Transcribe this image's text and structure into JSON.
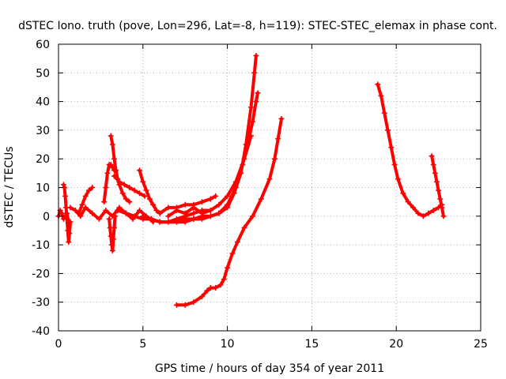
{
  "chart_data": {
    "type": "scatter",
    "title": "dSTEC Iono. truth (pove, Lon=296, Lat=-8, h=119): STEC-STEC_elemax in phase cont.",
    "xlabel": "GPS time / hours of day 354 of year 2011",
    "ylabel": "dSTEC  / TECUs",
    "xlim": [
      0,
      25
    ],
    "ylim": [
      -40,
      60
    ],
    "xticks": [
      0,
      5,
      10,
      15,
      20,
      25
    ],
    "yticks": [
      -40,
      -30,
      -20,
      -10,
      0,
      10,
      20,
      30,
      40,
      50,
      60
    ],
    "grid": true,
    "marker": "+",
    "color": "#ff0000",
    "series": [
      {
        "x": [
          0.0,
          0.1,
          0.2,
          0.3,
          0.4,
          0.5,
          0.6
        ],
        "y": [
          0,
          2,
          1,
          -1,
          0,
          1,
          -2
        ]
      },
      {
        "x": [
          0.3,
          0.35,
          0.4,
          0.45,
          0.5,
          0.55,
          0.6,
          0.65,
          0.7
        ],
        "y": [
          11,
          10,
          7,
          3,
          -1,
          -5,
          -9,
          -6,
          -2
        ]
      },
      {
        "x": [
          0.7,
          1.0,
          1.3,
          1.6,
          2.0,
          2.4,
          2.8,
          3.2,
          3.6,
          4.0,
          4.4,
          4.8,
          5.2,
          5.6
        ],
        "y": [
          3,
          2,
          0,
          3,
          1,
          -1,
          2,
          0,
          3,
          1,
          -1,
          2,
          0,
          -2
        ]
      },
      {
        "x": [
          1.2,
          1.4,
          1.6,
          1.8,
          2.0
        ],
        "y": [
          1,
          4,
          7,
          9,
          10
        ]
      },
      {
        "x": [
          2.7,
          2.8,
          2.9,
          3.0,
          3.1,
          3.2,
          3.3
        ],
        "y": [
          5,
          10,
          15,
          18,
          18,
          17,
          16
        ]
      },
      {
        "x": [
          3.0,
          3.05,
          3.1,
          3.15,
          3.2,
          3.25,
          3.3,
          3.35
        ],
        "y": [
          -1,
          -4,
          -7,
          -10,
          -12,
          -8,
          -4,
          0
        ]
      },
      {
        "x": [
          3.1,
          3.2,
          3.3,
          3.4,
          3.5,
          3.6,
          3.8,
          4.0,
          4.2
        ],
        "y": [
          28,
          25,
          20,
          16,
          13,
          11,
          8,
          6,
          5
        ]
      },
      {
        "x": [
          3.3,
          3.6,
          3.9,
          4.2,
          4.5,
          4.8,
          5.1
        ],
        "y": [
          14,
          12,
          11,
          10,
          9,
          8,
          7
        ]
      },
      {
        "x": [
          4.8,
          5.0,
          5.2,
          5.4,
          5.6,
          5.8,
          6.0
        ],
        "y": [
          16,
          12,
          9,
          6,
          4,
          2,
          1
        ]
      },
      {
        "x": [
          3.5,
          4.0,
          4.5,
          5.0,
          5.5,
          6.0,
          6.5,
          7.0,
          7.5,
          8.0,
          8.5,
          9.0,
          9.5,
          10.0,
          10.4,
          10.8,
          11.1,
          11.4,
          11.6,
          11.7
        ],
        "y": [
          2,
          1,
          0,
          -1,
          -1,
          -2,
          -2,
          -2,
          -2,
          -1,
          -1,
          0,
          1,
          3,
          8,
          15,
          25,
          38,
          50,
          56
        ]
      },
      {
        "x": [
          5.0,
          5.5,
          6.0,
          6.5,
          7.0,
          7.5,
          8.0,
          8.5,
          9.0,
          9.5,
          10.0,
          10.5,
          10.9,
          11.2,
          11.5,
          11.7,
          11.8
        ],
        "y": [
          0,
          -1,
          -2,
          -2,
          -2,
          -1,
          -1,
          0,
          0,
          1,
          4,
          10,
          18,
          25,
          33,
          40,
          43
        ]
      },
      {
        "x": [
          5.5,
          6.0,
          6.5,
          7.0,
          7.5,
          8.0,
          8.5,
          9.0,
          9.5,
          10.0,
          10.5,
          11.0,
          11.4
        ],
        "y": [
          -1,
          -2,
          -2,
          -1,
          0,
          1,
          2,
          2,
          4,
          7,
          12,
          20,
          28
        ]
      },
      {
        "x": [
          6.0,
          6.5,
          7.0,
          7.5,
          8.0,
          8.5,
          9.0,
          9.3
        ],
        "y": [
          1,
          3,
          3,
          4,
          4,
          5,
          6,
          7
        ]
      },
      {
        "x": [
          6.5,
          7.0,
          7.5,
          8.0,
          8.5,
          9.0
        ],
        "y": [
          0,
          2,
          1,
          3,
          1,
          2
        ]
      },
      {
        "x": [
          7.0,
          7.5,
          8.0,
          8.5,
          8.8,
          9.0,
          9.3,
          9.6,
          9.8,
          10.0,
          10.3,
          10.6,
          11.0,
          11.5,
          12.0,
          12.5,
          12.8,
          13.0,
          13.2
        ],
        "y": [
          -31,
          -31,
          -30,
          -28,
          -26,
          -25,
          -25,
          -24,
          -22,
          -18,
          -13,
          -9,
          -4,
          0,
          6,
          13,
          20,
          27,
          34
        ]
      },
      {
        "x": [
          18.9,
          19.1,
          19.3,
          19.5,
          19.7,
          19.9,
          20.1,
          20.4,
          20.7,
          21.0,
          21.3,
          21.6,
          21.9,
          22.2,
          22.5,
          22.7
        ],
        "y": [
          46,
          42,
          36,
          30,
          24,
          18,
          13,
          8,
          5,
          3,
          1,
          0,
          1,
          2,
          3,
          4
        ]
      },
      {
        "x": [
          22.1,
          22.2,
          22.3,
          22.4,
          22.5,
          22.6,
          22.7,
          22.8
        ],
        "y": [
          21,
          18,
          15,
          12,
          9,
          6,
          3,
          0
        ]
      }
    ]
  }
}
